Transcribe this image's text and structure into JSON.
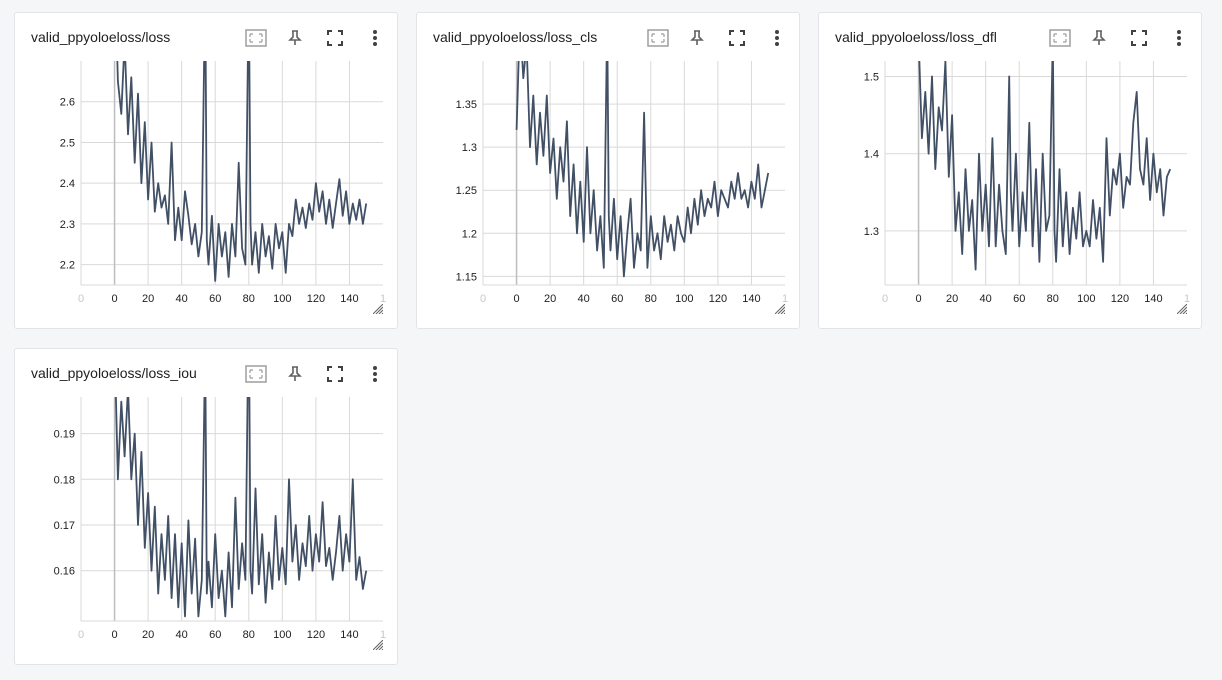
{
  "toolbar_icons": [
    "fit-domain-icon",
    "pin-icon",
    "fullscreen-icon",
    "more-vert-icon"
  ],
  "colors": {
    "line": "#425066",
    "grid": "#d9d9d9",
    "zero_axis": "#bdbdbd",
    "tick_text": "#212121",
    "faded_tick": "#c8c8c8"
  },
  "cards": [
    {
      "title": "valid_ppyoloeloss/loss"
    },
    {
      "title": "valid_ppyoloeloss/loss_cls"
    },
    {
      "title": "valid_ppyoloeloss/loss_dfl"
    },
    {
      "title": "valid_ppyoloeloss/loss_iou"
    }
  ],
  "chart_data": [
    {
      "type": "line",
      "title": "valid_ppyoloeloss/loss",
      "xlabel": "",
      "ylabel": "",
      "xlim": [
        -20,
        160
      ],
      "ylim": [
        2.15,
        2.7
      ],
      "x_ticks": [
        "0",
        "0",
        "20",
        "40",
        "60",
        "80",
        "100",
        "120",
        "140",
        "1"
      ],
      "y_ticks": [
        "2.2",
        "2.3",
        "2.4",
        "2.5",
        "2.6"
      ],
      "grid": true,
      "series": [
        {
          "x": [
            0,
            2,
            4,
            6,
            8,
            10,
            12,
            14,
            16,
            18,
            20,
            22,
            24,
            26,
            28,
            30,
            32,
            34,
            36,
            38,
            40,
            42,
            44,
            46,
            48,
            50,
            52,
            54,
            55,
            56,
            58,
            60,
            62,
            64,
            66,
            68,
            70,
            72,
            74,
            76,
            78,
            80,
            81,
            82,
            84,
            86,
            88,
            90,
            92,
            94,
            96,
            98,
            100,
            102,
            104,
            106,
            108,
            110,
            112,
            114,
            116,
            118,
            120,
            122,
            124,
            126,
            128,
            130,
            132,
            134,
            136,
            138,
            140,
            142,
            144,
            146,
            148,
            150
          ],
          "y": [
            2.95,
            2.65,
            2.57,
            2.75,
            2.52,
            2.66,
            2.45,
            2.62,
            2.4,
            2.55,
            2.36,
            2.5,
            2.33,
            2.4,
            2.34,
            2.37,
            2.3,
            2.5,
            2.26,
            2.34,
            2.26,
            2.38,
            2.32,
            2.25,
            2.3,
            2.22,
            2.28,
            2.9,
            2.26,
            2.2,
            2.32,
            2.16,
            2.3,
            2.22,
            2.28,
            2.17,
            2.3,
            2.22,
            2.45,
            2.24,
            2.2,
            2.9,
            2.3,
            2.2,
            2.28,
            2.18,
            2.3,
            2.22,
            2.27,
            2.19,
            2.3,
            2.24,
            2.28,
            2.18,
            2.3,
            2.27,
            2.36,
            2.3,
            2.34,
            2.29,
            2.35,
            2.31,
            2.4,
            2.33,
            2.38,
            2.3,
            2.36,
            2.29,
            2.35,
            2.41,
            2.32,
            2.38,
            2.3,
            2.35,
            2.31,
            2.36,
            2.3,
            2.35
          ]
        }
      ]
    },
    {
      "type": "line",
      "title": "valid_ppyoloeloss/loss_cls",
      "xlabel": "",
      "ylabel": "",
      "xlim": [
        -20,
        160
      ],
      "ylim": [
        1.14,
        1.4
      ],
      "x_ticks": [
        "0",
        "0",
        "20",
        "40",
        "60",
        "80",
        "100",
        "120",
        "140",
        "1"
      ],
      "y_ticks": [
        "1.15",
        "1.2",
        "1.25",
        "1.3",
        "1.35"
      ],
      "grid": true,
      "series": [
        {
          "x": [
            0,
            2,
            4,
            6,
            8,
            10,
            12,
            14,
            16,
            18,
            20,
            22,
            24,
            26,
            28,
            30,
            32,
            34,
            36,
            38,
            40,
            42,
            44,
            46,
            48,
            50,
            52,
            54,
            55,
            56,
            58,
            60,
            62,
            64,
            66,
            68,
            70,
            72,
            74,
            76,
            78,
            80,
            82,
            84,
            86,
            88,
            90,
            92,
            94,
            96,
            98,
            100,
            102,
            104,
            106,
            108,
            110,
            112,
            114,
            116,
            118,
            120,
            122,
            124,
            126,
            128,
            130,
            132,
            134,
            136,
            138,
            140,
            142,
            144,
            146,
            148,
            150
          ],
          "y": [
            1.32,
            1.45,
            1.38,
            1.42,
            1.3,
            1.36,
            1.28,
            1.34,
            1.29,
            1.36,
            1.27,
            1.31,
            1.24,
            1.3,
            1.26,
            1.33,
            1.22,
            1.28,
            1.2,
            1.26,
            1.19,
            1.3,
            1.2,
            1.25,
            1.18,
            1.22,
            1.16,
            1.45,
            1.22,
            1.18,
            1.24,
            1.17,
            1.22,
            1.15,
            1.2,
            1.24,
            1.16,
            1.2,
            1.18,
            1.34,
            1.16,
            1.22,
            1.18,
            1.2,
            1.17,
            1.22,
            1.19,
            1.21,
            1.18,
            1.22,
            1.2,
            1.19,
            1.23,
            1.2,
            1.24,
            1.21,
            1.25,
            1.22,
            1.24,
            1.23,
            1.26,
            1.22,
            1.25,
            1.24,
            1.23,
            1.26,
            1.24,
            1.27,
            1.24,
            1.25,
            1.23,
            1.26,
            1.24,
            1.28,
            1.23,
            1.25,
            1.27
          ]
        }
      ]
    },
    {
      "type": "line",
      "title": "valid_ppyoloeloss/loss_dfl",
      "xlabel": "",
      "ylabel": "",
      "xlim": [
        -20,
        160
      ],
      "ylim": [
        1.23,
        1.52
      ],
      "x_ticks": [
        "0",
        "0",
        "20",
        "40",
        "60",
        "80",
        "100",
        "120",
        "140",
        "1"
      ],
      "y_ticks": [
        "1.3",
        "1.4",
        "1.5"
      ],
      "grid": true,
      "series": [
        {
          "x": [
            0,
            2,
            4,
            6,
            8,
            10,
            12,
            14,
            16,
            18,
            20,
            22,
            24,
            26,
            28,
            30,
            32,
            34,
            36,
            38,
            40,
            42,
            44,
            46,
            48,
            50,
            52,
            54,
            55,
            56,
            58,
            60,
            62,
            64,
            66,
            68,
            70,
            72,
            74,
            76,
            78,
            80,
            81,
            82,
            84,
            86,
            88,
            90,
            92,
            94,
            96,
            98,
            100,
            102,
            104,
            106,
            108,
            110,
            112,
            114,
            116,
            118,
            120,
            122,
            124,
            126,
            128,
            130,
            132,
            134,
            136,
            138,
            140,
            142,
            144,
            146,
            148,
            150
          ],
          "y": [
            1.55,
            1.42,
            1.48,
            1.4,
            1.5,
            1.38,
            1.46,
            1.43,
            1.52,
            1.37,
            1.45,
            1.3,
            1.35,
            1.27,
            1.38,
            1.3,
            1.34,
            1.25,
            1.4,
            1.3,
            1.36,
            1.28,
            1.42,
            1.28,
            1.36,
            1.3,
            1.27,
            1.5,
            1.35,
            1.3,
            1.4,
            1.28,
            1.35,
            1.3,
            1.44,
            1.28,
            1.38,
            1.26,
            1.4,
            1.3,
            1.32,
            1.55,
            1.3,
            1.26,
            1.38,
            1.28,
            1.35,
            1.27,
            1.33,
            1.29,
            1.35,
            1.28,
            1.3,
            1.28,
            1.34,
            1.29,
            1.33,
            1.26,
            1.42,
            1.32,
            1.38,
            1.36,
            1.4,
            1.33,
            1.37,
            1.36,
            1.44,
            1.48,
            1.38,
            1.36,
            1.42,
            1.34,
            1.4,
            1.35,
            1.38,
            1.32,
            1.37,
            1.38
          ]
        }
      ]
    },
    {
      "type": "line",
      "title": "valid_ppyoloeloss/loss_iou",
      "xlabel": "",
      "ylabel": "",
      "xlim": [
        -20,
        160
      ],
      "ylim": [
        0.149,
        0.198
      ],
      "x_ticks": [
        "0",
        "0",
        "20",
        "40",
        "60",
        "80",
        "100",
        "120",
        "140",
        "1"
      ],
      "y_ticks": [
        "0.16",
        "0.17",
        "0.18",
        "0.19"
      ],
      "grid": true,
      "series": [
        {
          "x": [
            0,
            2,
            4,
            6,
            8,
            10,
            12,
            14,
            16,
            18,
            20,
            22,
            24,
            26,
            28,
            30,
            32,
            34,
            36,
            38,
            40,
            42,
            44,
            46,
            48,
            50,
            52,
            54,
            55,
            56,
            58,
            60,
            62,
            64,
            66,
            68,
            70,
            72,
            74,
            76,
            78,
            80,
            81,
            82,
            84,
            86,
            88,
            90,
            92,
            94,
            96,
            98,
            100,
            102,
            104,
            106,
            108,
            110,
            112,
            114,
            116,
            118,
            120,
            122,
            124,
            126,
            128,
            130,
            132,
            134,
            136,
            138,
            140,
            142,
            144,
            146,
            148,
            150
          ],
          "y": [
            0.21,
            0.18,
            0.197,
            0.185,
            0.2,
            0.18,
            0.19,
            0.17,
            0.186,
            0.165,
            0.177,
            0.16,
            0.174,
            0.155,
            0.168,
            0.158,
            0.172,
            0.154,
            0.168,
            0.152,
            0.166,
            0.15,
            0.171,
            0.155,
            0.167,
            0.15,
            0.158,
            0.21,
            0.155,
            0.162,
            0.152,
            0.168,
            0.154,
            0.16,
            0.15,
            0.164,
            0.152,
            0.176,
            0.156,
            0.166,
            0.158,
            0.22,
            0.16,
            0.155,
            0.178,
            0.157,
            0.168,
            0.153,
            0.164,
            0.156,
            0.172,
            0.158,
            0.165,
            0.157,
            0.18,
            0.162,
            0.17,
            0.158,
            0.166,
            0.161,
            0.172,
            0.16,
            0.168,
            0.162,
            0.175,
            0.161,
            0.165,
            0.158,
            0.164,
            0.172,
            0.16,
            0.168,
            0.162,
            0.18,
            0.158,
            0.163,
            0.156,
            0.16
          ]
        }
      ]
    }
  ]
}
